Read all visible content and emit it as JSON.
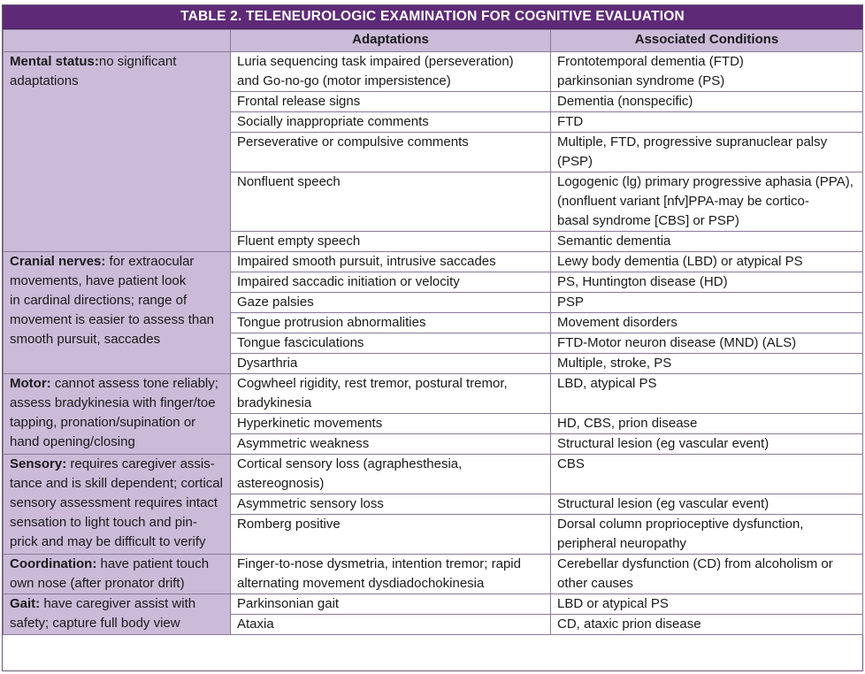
{
  "title": "TABLE 2. TELENEUROLOGIC EXAMINATION FOR COGNITIVE EVALUATION",
  "headers": {
    "col1": "",
    "col2": "Adaptations",
    "col3": "Associated Conditions"
  },
  "sections": [
    {
      "label": "Mental status:",
      "desc_lines": [
        "no significant adaptations"
      ],
      "rows": [
        {
          "a": [
            "Luria sequencing task impaired (perseveration)",
            "and Go-no-go (motor impersistence)"
          ],
          "c": [
            "Frontotemporal dementia (FTD)",
            "parkinsonian syndrome (PS)"
          ]
        },
        {
          "a": [
            "Frontal release signs"
          ],
          "c": [
            "Dementia (nonspecific)"
          ]
        },
        {
          "a": [
            "Socially inappropriate comments"
          ],
          "c": [
            "FTD"
          ]
        },
        {
          "a": [
            "Perseverative or compulsive comments"
          ],
          "c": [
            "Multiple, FTD, progressive supranuclear palsy (PSP)"
          ]
        },
        {
          "a": [
            "Nonfluent speech"
          ],
          "c": [
            "Logogenic (lg) primary progressive aphasia (PPA),",
            "(nonfluent variant [nfv]PPA-may be cortico-",
            "basal syndrome [CBS] or PSP)"
          ]
        },
        {
          "a": [
            "Fluent empty speech"
          ],
          "c": [
            "Semantic dementia"
          ]
        }
      ]
    },
    {
      "label": "Cranial nerves:",
      "desc_lines": [
        " for extraocular",
        "movements, have patient look",
        "in cardinal directions; range of",
        "movement is easier to assess than",
        "smooth pursuit, saccades"
      ],
      "rows": [
        {
          "a": [
            "Impaired smooth pursuit, intrusive saccades"
          ],
          "c": [
            "Lewy body dementia (LBD) or atypical PS"
          ]
        },
        {
          "a": [
            "Impaired saccadic initiation or velocity"
          ],
          "c": [
            "PS, Huntington disease (HD)"
          ]
        },
        {
          "a": [
            "Gaze palsies"
          ],
          "c": [
            "PSP"
          ]
        },
        {
          "a": [
            "Tongue protrusion abnormalities"
          ],
          "c": [
            "Movement disorders"
          ]
        },
        {
          "a": [
            "Tongue fasciculations"
          ],
          "c": [
            "FTD-Motor neuron disease (MND) (ALS)"
          ]
        },
        {
          "a": [
            "Dysarthria"
          ],
          "c": [
            "Multiple, stroke, PS"
          ]
        }
      ]
    },
    {
      "label": "Motor:",
      "desc_lines": [
        " cannot assess tone reliably;",
        "assess bradykinesia with finger/toe",
        "tapping, pronation/supination or",
        "hand opening/closing"
      ],
      "rows": [
        {
          "a": [
            "Cogwheel rigidity, rest tremor, postural tremor,",
            "bradykinesia"
          ],
          "c": [
            "LBD, atypical PS"
          ]
        },
        {
          "a": [
            "Hyperkinetic movements"
          ],
          "c": [
            "HD, CBS, prion disease"
          ]
        },
        {
          "a": [
            "Asymmetric weakness"
          ],
          "c": [
            "Structural lesion (eg vascular event)"
          ]
        }
      ]
    },
    {
      "label": "Sensory:",
      "desc_lines": [
        " requires caregiver assis-",
        "tance and is skill dependent; cortical",
        "sensory assessment requires intact",
        "sensation to light touch and pin-",
        "prick and may be difficult to verify"
      ],
      "rows": [
        {
          "a": [
            "Cortical sensory loss (agraphesthesia, astereognosis)"
          ],
          "c": [
            "CBS"
          ]
        },
        {
          "a": [
            "Asymmetric sensory loss"
          ],
          "c": [
            "Structural lesion (eg vascular event)"
          ]
        },
        {
          "a": [
            "Romberg positive"
          ],
          "c": [
            "Dorsal column proprioceptive dysfunction,",
            "peripheral neuropathy"
          ]
        }
      ]
    },
    {
      "label": "Coordination:",
      "desc_lines": [
        " have patient touch",
        "own nose (after pronator drift)"
      ],
      "rows": [
        {
          "a": [
            "Finger-to-nose dysmetria, intention tremor; rapid",
            "alternating movement dysdiadochokinesia"
          ],
          "c": [
            "Cerebellar dysfunction (CD) from alcoholism or",
            "other causes"
          ]
        }
      ]
    },
    {
      "label": "Gait:",
      "desc_lines": [
        " have caregiver assist with",
        "safety; capture full body view"
      ],
      "rows": [
        {
          "a": [
            "Parkinsonian gait"
          ],
          "c": [
            "LBD or atypical PS"
          ]
        },
        {
          "a": [
            "Ataxia"
          ],
          "c": [
            "CD, ataxic prion disease"
          ]
        }
      ]
    }
  ]
}
